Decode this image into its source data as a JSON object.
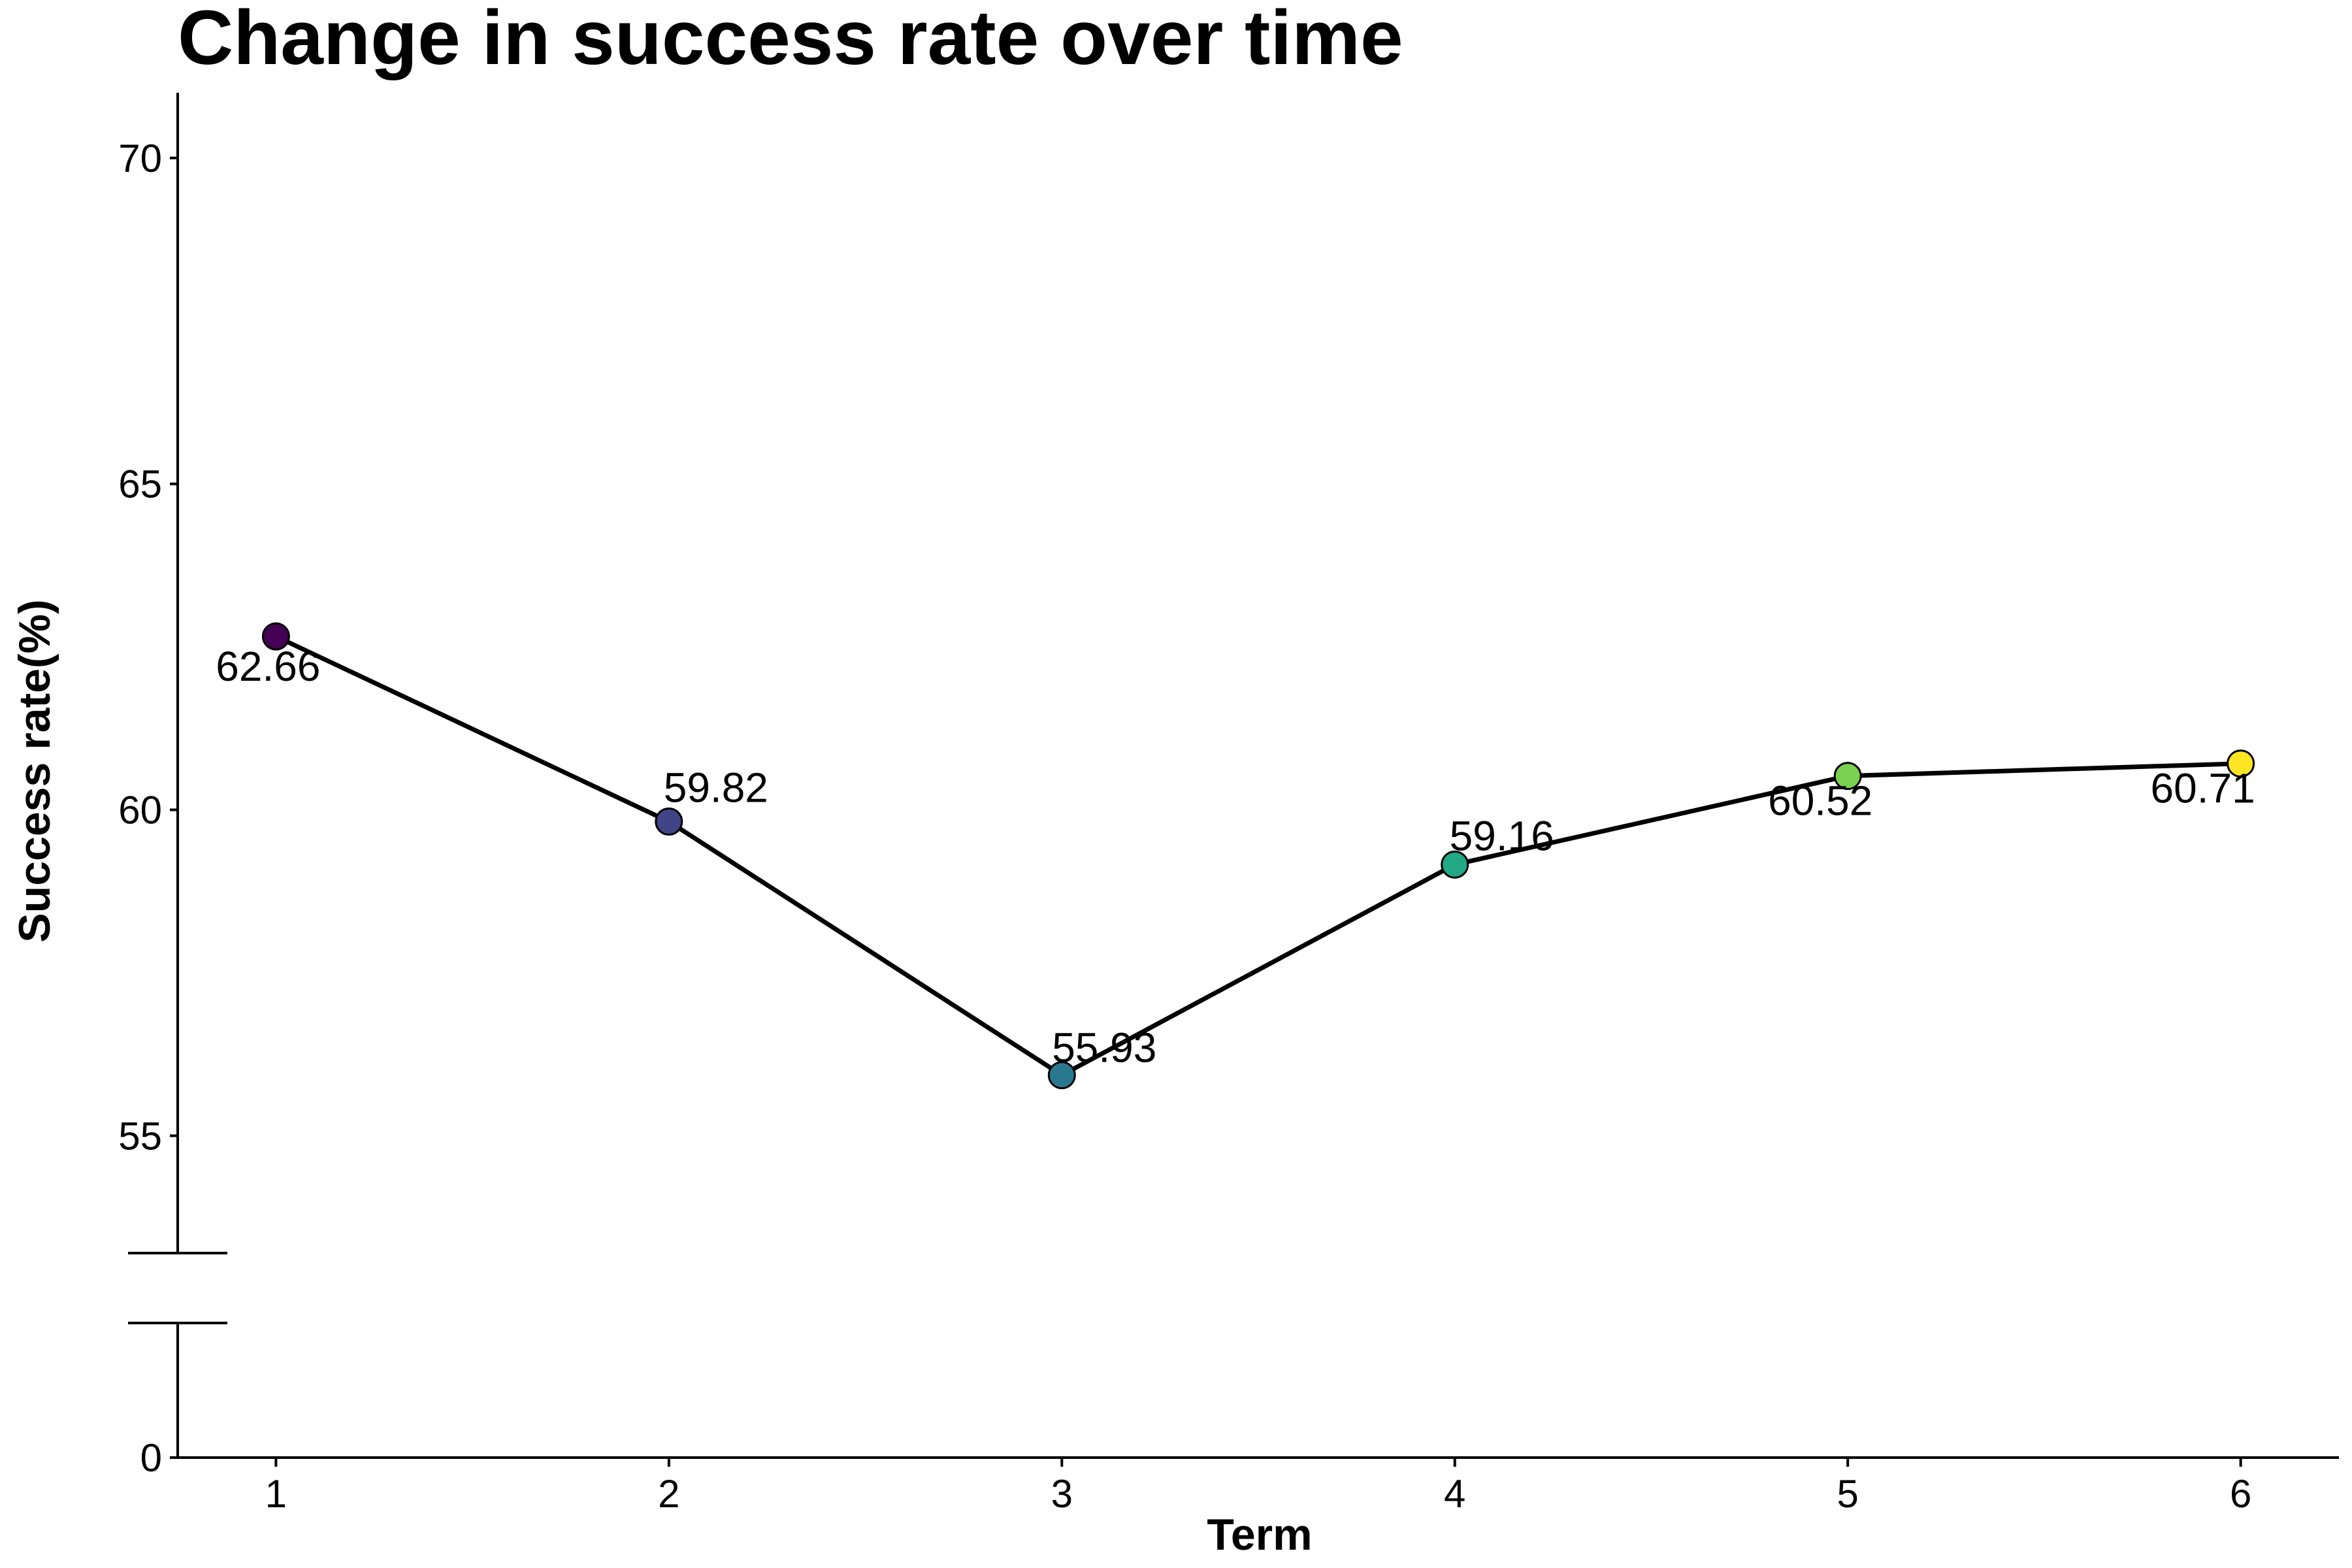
{
  "chart_data": {
    "type": "line",
    "title": "Change in success rate over time",
    "xlabel": "Term",
    "ylabel": "Success rate(%)",
    "x": [
      1,
      2,
      3,
      4,
      5,
      6
    ],
    "x_tick_labels": [
      "1",
      "2",
      "3",
      "4",
      "5",
      "6"
    ],
    "series": [
      {
        "values": [
          62.66,
          59.82,
          55.93,
          59.16,
          60.52,
          60.71
        ],
        "labels": [
          "62.66",
          "59.82",
          "55.93",
          "59.16",
          "60.52",
          "60.71"
        ],
        "point_colors": [
          "#440154",
          "#414487",
          "#2A788E",
          "#22A884",
          "#7AD151",
          "#FDE725"
        ],
        "line_color": "#000000"
      }
    ],
    "y_ticks": [
      0,
      55,
      60,
      65,
      70
    ],
    "y_tick_labels": [
      "0",
      "55",
      "60",
      "65",
      "70"
    ],
    "y_axis_break": true,
    "ylim_lower_segment": [
      0,
      2
    ],
    "ylim_upper_segment": [
      53.2,
      71
    ],
    "xlim": [
      0.75,
      6.25
    ],
    "grid": false,
    "legend": "none"
  }
}
